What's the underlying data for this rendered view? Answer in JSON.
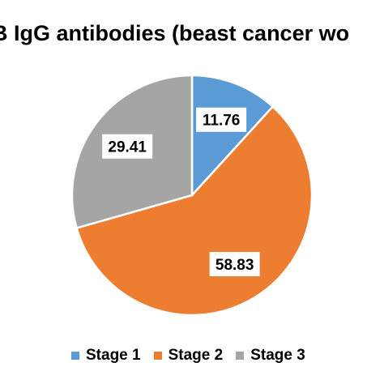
{
  "chart_data": {
    "type": "pie",
    "title": "B IgG antibodies (beast cancer wo",
    "categories": [
      "Stage 1",
      "Stage 2",
      "Stage 3"
    ],
    "values": [
      11.76,
      58.83,
      29.41
    ],
    "labels": [
      "11.76",
      "58.83",
      "29.41"
    ],
    "colors": [
      "#5B9BD5",
      "#ED7D31",
      "#A5A5A5"
    ],
    "legend_position": "bottom",
    "start_angle_deg": 0,
    "direction": "clockwise"
  }
}
